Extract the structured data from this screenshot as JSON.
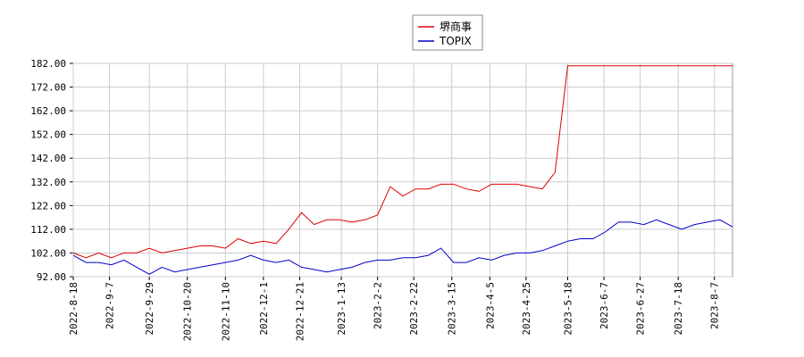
{
  "chart_data": {
    "type": "line",
    "x": [
      "2022-8-18",
      "2022-8-25",
      "2022-9-1",
      "2022-9-8",
      "2022-9-15",
      "2022-9-22",
      "2022-9-29",
      "2022-10-6",
      "2022-10-13",
      "2022-10-20",
      "2022-10-27",
      "2022-11-3",
      "2022-11-10",
      "2022-11-17",
      "2022-11-24",
      "2022-12-1",
      "2022-12-8",
      "2022-12-15",
      "2022-12-22",
      "2022-12-29",
      "2023-1-5",
      "2023-1-12",
      "2023-1-19",
      "2023-1-26",
      "2023-2-2",
      "2023-2-9",
      "2023-2-16",
      "2023-2-23",
      "2023-3-2",
      "2023-3-9",
      "2023-3-16",
      "2023-3-23",
      "2023-3-30",
      "2023-4-6",
      "2023-4-13",
      "2023-4-20",
      "2023-4-27",
      "2023-5-4",
      "2023-5-11",
      "2023-5-18",
      "2023-5-25",
      "2023-6-1",
      "2023-6-8",
      "2023-6-15",
      "2023-6-22",
      "2023-6-29",
      "2023-7-6",
      "2023-7-13",
      "2023-7-20",
      "2023-7-27",
      "2023-8-3",
      "2023-8-10",
      "2023-8-17"
    ],
    "series": [
      {
        "name": "堺商事",
        "color": "#dd0000",
        "values": [
          102,
          100,
          102,
          100,
          102,
          102,
          104,
          102,
          103,
          104,
          105,
          105,
          104,
          108,
          106,
          107,
          106,
          112,
          119,
          114,
          116,
          116,
          115,
          116,
          118,
          130,
          126,
          129,
          129,
          131,
          131,
          129,
          128,
          131,
          131,
          131,
          130,
          129,
          136,
          181,
          181,
          181,
          181,
          181,
          181,
          181,
          181,
          181,
          181,
          181,
          181,
          181,
          181
        ]
      },
      {
        "name": "TOPIX",
        "color": "#0000cc",
        "values": [
          101,
          98,
          98,
          97,
          99,
          96,
          93,
          96,
          94,
          95,
          96,
          97,
          98,
          99,
          101,
          99,
          98,
          99,
          96,
          95,
          94,
          95,
          96,
          98,
          99,
          99,
          100,
          100,
          101,
          104,
          98,
          98,
          100,
          99,
          101,
          102,
          102,
          103,
          105,
          107,
          108,
          108,
          111,
          115,
          115,
          114,
          116,
          114,
          112,
          114,
          115,
          116,
          113
        ]
      }
    ],
    "ylim": [
      92,
      182
    ],
    "yticks": [
      {
        "value": 92,
        "label": "92.00"
      },
      {
        "value": 102,
        "label": "102.00"
      },
      {
        "value": 112,
        "label": "112.00"
      },
      {
        "value": 122,
        "label": "122.00"
      },
      {
        "value": 132,
        "label": "132.00"
      },
      {
        "value": 142,
        "label": "142.00"
      },
      {
        "value": 152,
        "label": "152.00"
      },
      {
        "value": 162,
        "label": "162.00"
      },
      {
        "value": 172,
        "label": "172.00"
      },
      {
        "value": 182,
        "label": "182.00"
      }
    ],
    "xlim": [
      "2022-8-18",
      "2023-8-17"
    ],
    "xticks": [
      "2022-8-18",
      "2022-9-7",
      "2022-9-29",
      "2022-10-20",
      "2022-11-10",
      "2022-12-1",
      "2022-12-21",
      "2023-1-13",
      "2023-2-2",
      "2023-2-22",
      "2023-3-15",
      "2023-4-5",
      "2023-4-25",
      "2023-5-18",
      "2023-6-7",
      "2023-6-27",
      "2023-7-18",
      "2023-8-7"
    ],
    "grid": true,
    "legend": "top"
  }
}
